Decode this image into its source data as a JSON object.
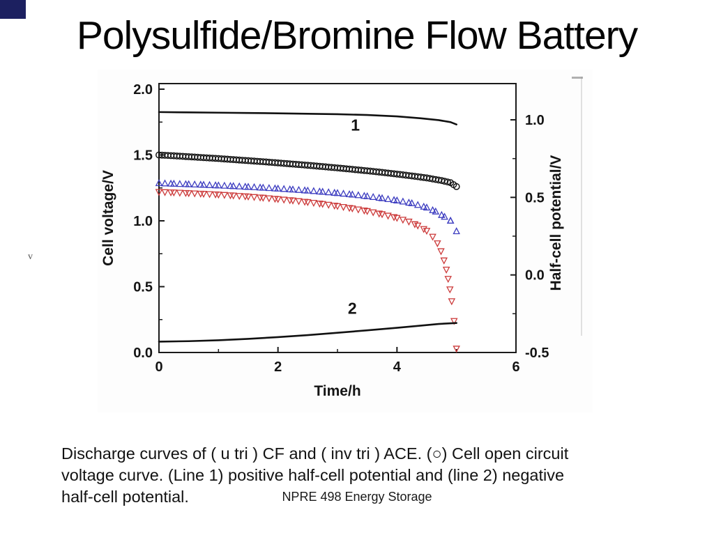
{
  "slide": {
    "title": "Polysulfide/Bromine Flow Battery",
    "stray_mark": "v",
    "caption_lines": [
      "Discharge curves of ( u tri ) CF and ( inv tri ) ACE. (○) Cell open circuit",
      "voltage curve. (Line 1) positive half-cell potential and (line 2) negative",
      "half-cell potential."
    ],
    "footer": "NPRE 498 Energy Storage"
  },
  "chart_data": {
    "type": "line+scatter",
    "title": "",
    "xlabel": "Time/h",
    "ylabel_left": "Cell voltage/V",
    "ylabel_right": "Half-cell potential/V",
    "xlim": [
      0,
      6
    ],
    "ylim_left": [
      0.0,
      2.0
    ],
    "ylim_right": [
      -0.5,
      1.0
    ],
    "grid": false,
    "legend": "none",
    "x_ticks": [
      0,
      2,
      4,
      6
    ],
    "x_tick_labels": [
      "0",
      "2",
      "4",
      "6"
    ],
    "x_minor_ticks": [
      1,
      3,
      5
    ],
    "y_ticks_left": [
      0.0,
      0.5,
      1.0,
      1.5,
      2.0
    ],
    "y_tick_labels_left": [
      "0.0",
      "0.5",
      "1.0",
      "1.5",
      "2.0"
    ],
    "y_minor_ticks_left": [
      0.25,
      0.75,
      1.25,
      1.75
    ],
    "y_ticks_right": [
      -0.5,
      0.0,
      0.5,
      1.0
    ],
    "y_tick_labels_right": [
      "-0.5",
      "0.0",
      "0.5",
      "1.0"
    ],
    "y_minor_ticks_right": [
      -0.25,
      0.25,
      0.75
    ],
    "annotations": [
      {
        "text": "1",
        "x": 3.3,
        "value": 0.93,
        "axis": "right"
      },
      {
        "text": "2",
        "x": 3.25,
        "value": -0.25,
        "axis": "right"
      }
    ],
    "series": [
      {
        "name": "Cell open circuit voltage curve",
        "marker": "circle",
        "color": "#151515",
        "axis": "left",
        "marker_spacing": 0.05,
        "points": [
          [
            0,
            1.5
          ],
          [
            0.25,
            1.494
          ],
          [
            0.5,
            1.487
          ],
          [
            0.75,
            1.48
          ],
          [
            1.0,
            1.473
          ],
          [
            1.25,
            1.465
          ],
          [
            1.5,
            1.457
          ],
          [
            1.75,
            1.449
          ],
          [
            2.0,
            1.44
          ],
          [
            2.25,
            1.431
          ],
          [
            2.5,
            1.422
          ],
          [
            2.75,
            1.412
          ],
          [
            3.0,
            1.402
          ],
          [
            3.25,
            1.391
          ],
          [
            3.5,
            1.38
          ],
          [
            3.75,
            1.368
          ],
          [
            4.0,
            1.355
          ],
          [
            4.25,
            1.341
          ],
          [
            4.5,
            1.326
          ],
          [
            4.75,
            1.306
          ],
          [
            4.9,
            1.29
          ],
          [
            5.0,
            1.26
          ]
        ]
      },
      {
        "name": "CF discharge curve",
        "marker": "triangle-up",
        "color": "#3c3cc0",
        "axis": "left",
        "marker_spacing": 0.1,
        "points": [
          [
            0,
            1.285
          ],
          [
            0.25,
            1.281
          ],
          [
            0.5,
            1.277
          ],
          [
            0.75,
            1.273
          ],
          [
            1.0,
            1.268
          ],
          [
            1.25,
            1.263
          ],
          [
            1.5,
            1.257
          ],
          [
            1.75,
            1.251
          ],
          [
            2.0,
            1.244
          ],
          [
            2.25,
            1.237
          ],
          [
            2.5,
            1.229
          ],
          [
            2.75,
            1.22
          ],
          [
            3.0,
            1.21
          ],
          [
            3.25,
            1.199
          ],
          [
            3.5,
            1.186
          ],
          [
            3.75,
            1.171
          ],
          [
            4.0,
            1.154
          ],
          [
            4.25,
            1.133
          ],
          [
            4.5,
            1.1
          ],
          [
            4.65,
            1.07
          ],
          [
            4.8,
            1.03
          ],
          [
            4.9,
            1.0
          ],
          [
            5.0,
            0.92
          ]
        ]
      },
      {
        "name": "ACE discharge curve",
        "marker": "triangle-down",
        "color": "#cc3a3a",
        "axis": "left",
        "marker_spacing": 0.1,
        "points": [
          [
            0,
            1.22
          ],
          [
            0.25,
            1.216
          ],
          [
            0.5,
            1.211
          ],
          [
            0.75,
            1.206
          ],
          [
            1.0,
            1.2
          ],
          [
            1.25,
            1.193
          ],
          [
            1.5,
            1.185
          ],
          [
            1.75,
            1.176
          ],
          [
            2.0,
            1.166
          ],
          [
            2.25,
            1.155
          ],
          [
            2.5,
            1.143
          ],
          [
            2.75,
            1.129
          ],
          [
            3.0,
            1.113
          ],
          [
            3.25,
            1.095
          ],
          [
            3.5,
            1.075
          ],
          [
            3.75,
            1.051
          ],
          [
            4.0,
            1.023
          ],
          [
            4.2,
            0.995
          ],
          [
            4.35,
            0.965
          ],
          [
            4.5,
            0.925
          ],
          [
            4.6,
            0.88
          ],
          [
            4.68,
            0.83
          ],
          [
            4.74,
            0.77
          ],
          [
            4.79,
            0.7
          ],
          [
            4.83,
            0.63
          ],
          [
            4.86,
            0.56
          ],
          [
            4.89,
            0.48
          ],
          [
            4.92,
            0.39
          ],
          [
            4.96,
            0.24
          ],
          [
            5.0,
            0.03
          ]
        ]
      },
      {
        "name": "Positive half-cell potential (line 1)",
        "marker": "line",
        "color": "#111111",
        "axis": "right",
        "points": [
          [
            0,
            1.05
          ],
          [
            0.5,
            1.048
          ],
          [
            1.0,
            1.046
          ],
          [
            1.5,
            1.044
          ],
          [
            2.0,
            1.042
          ],
          [
            2.5,
            1.039
          ],
          [
            3.0,
            1.036
          ],
          [
            3.5,
            1.031
          ],
          [
            4.0,
            1.022
          ],
          [
            4.4,
            1.01
          ],
          [
            4.7,
            0.998
          ],
          [
            4.9,
            0.985
          ],
          [
            5.0,
            0.97
          ]
        ]
      },
      {
        "name": "Negative half-cell potential (line 2)",
        "marker": "line",
        "color": "#111111",
        "axis": "right",
        "points": [
          [
            0,
            -0.43
          ],
          [
            0.5,
            -0.427
          ],
          [
            1.0,
            -0.421
          ],
          [
            1.5,
            -0.412
          ],
          [
            2.0,
            -0.401
          ],
          [
            2.5,
            -0.388
          ],
          [
            3.0,
            -0.373
          ],
          [
            3.5,
            -0.357
          ],
          [
            4.0,
            -0.341
          ],
          [
            4.4,
            -0.327
          ],
          [
            4.7,
            -0.316
          ],
          [
            5.0,
            -0.31
          ]
        ]
      }
    ]
  }
}
